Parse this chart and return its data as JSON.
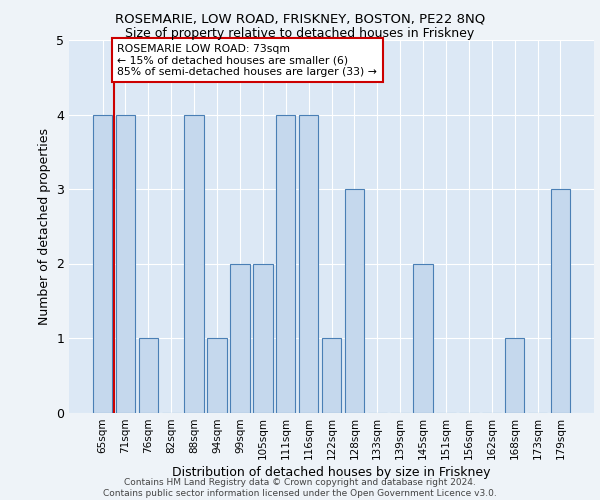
{
  "title1": "ROSEMARIE, LOW ROAD, FRISKNEY, BOSTON, PE22 8NQ",
  "title2": "Size of property relative to detached houses in Friskney",
  "xlabel": "Distribution of detached houses by size in Friskney",
  "ylabel": "Number of detached properties",
  "categories": [
    "65sqm",
    "71sqm",
    "76sqm",
    "82sqm",
    "88sqm",
    "94sqm",
    "99sqm",
    "105sqm",
    "111sqm",
    "116sqm",
    "122sqm",
    "128sqm",
    "133sqm",
    "139sqm",
    "145sqm",
    "151sqm",
    "156sqm",
    "162sqm",
    "168sqm",
    "173sqm",
    "179sqm"
  ],
  "values": [
    4,
    4,
    1,
    0,
    4,
    1,
    2,
    2,
    4,
    4,
    1,
    3,
    0,
    0,
    2,
    0,
    0,
    0,
    1,
    0,
    3
  ],
  "bar_color": "#c5d8ed",
  "bar_edge_color": "#4a7fb5",
  "bar_edge_width": 0.8,
  "vline_color": "#cc0000",
  "vline_x_index": 1,
  "annotation_text": "ROSEMARIE LOW ROAD: 73sqm\n← 15% of detached houses are smaller (6)\n85% of semi-detached houses are larger (33) →",
  "annotation_box_color": "white",
  "annotation_box_edge_color": "#cc0000",
  "ylim": [
    0,
    5
  ],
  "yticks": [
    0,
    1,
    2,
    3,
    4,
    5
  ],
  "footnote": "Contains HM Land Registry data © Crown copyright and database right 2024.\nContains public sector information licensed under the Open Government Licence v3.0.",
  "bg_color": "#eef3f8",
  "plot_bg_color": "#dce8f5"
}
